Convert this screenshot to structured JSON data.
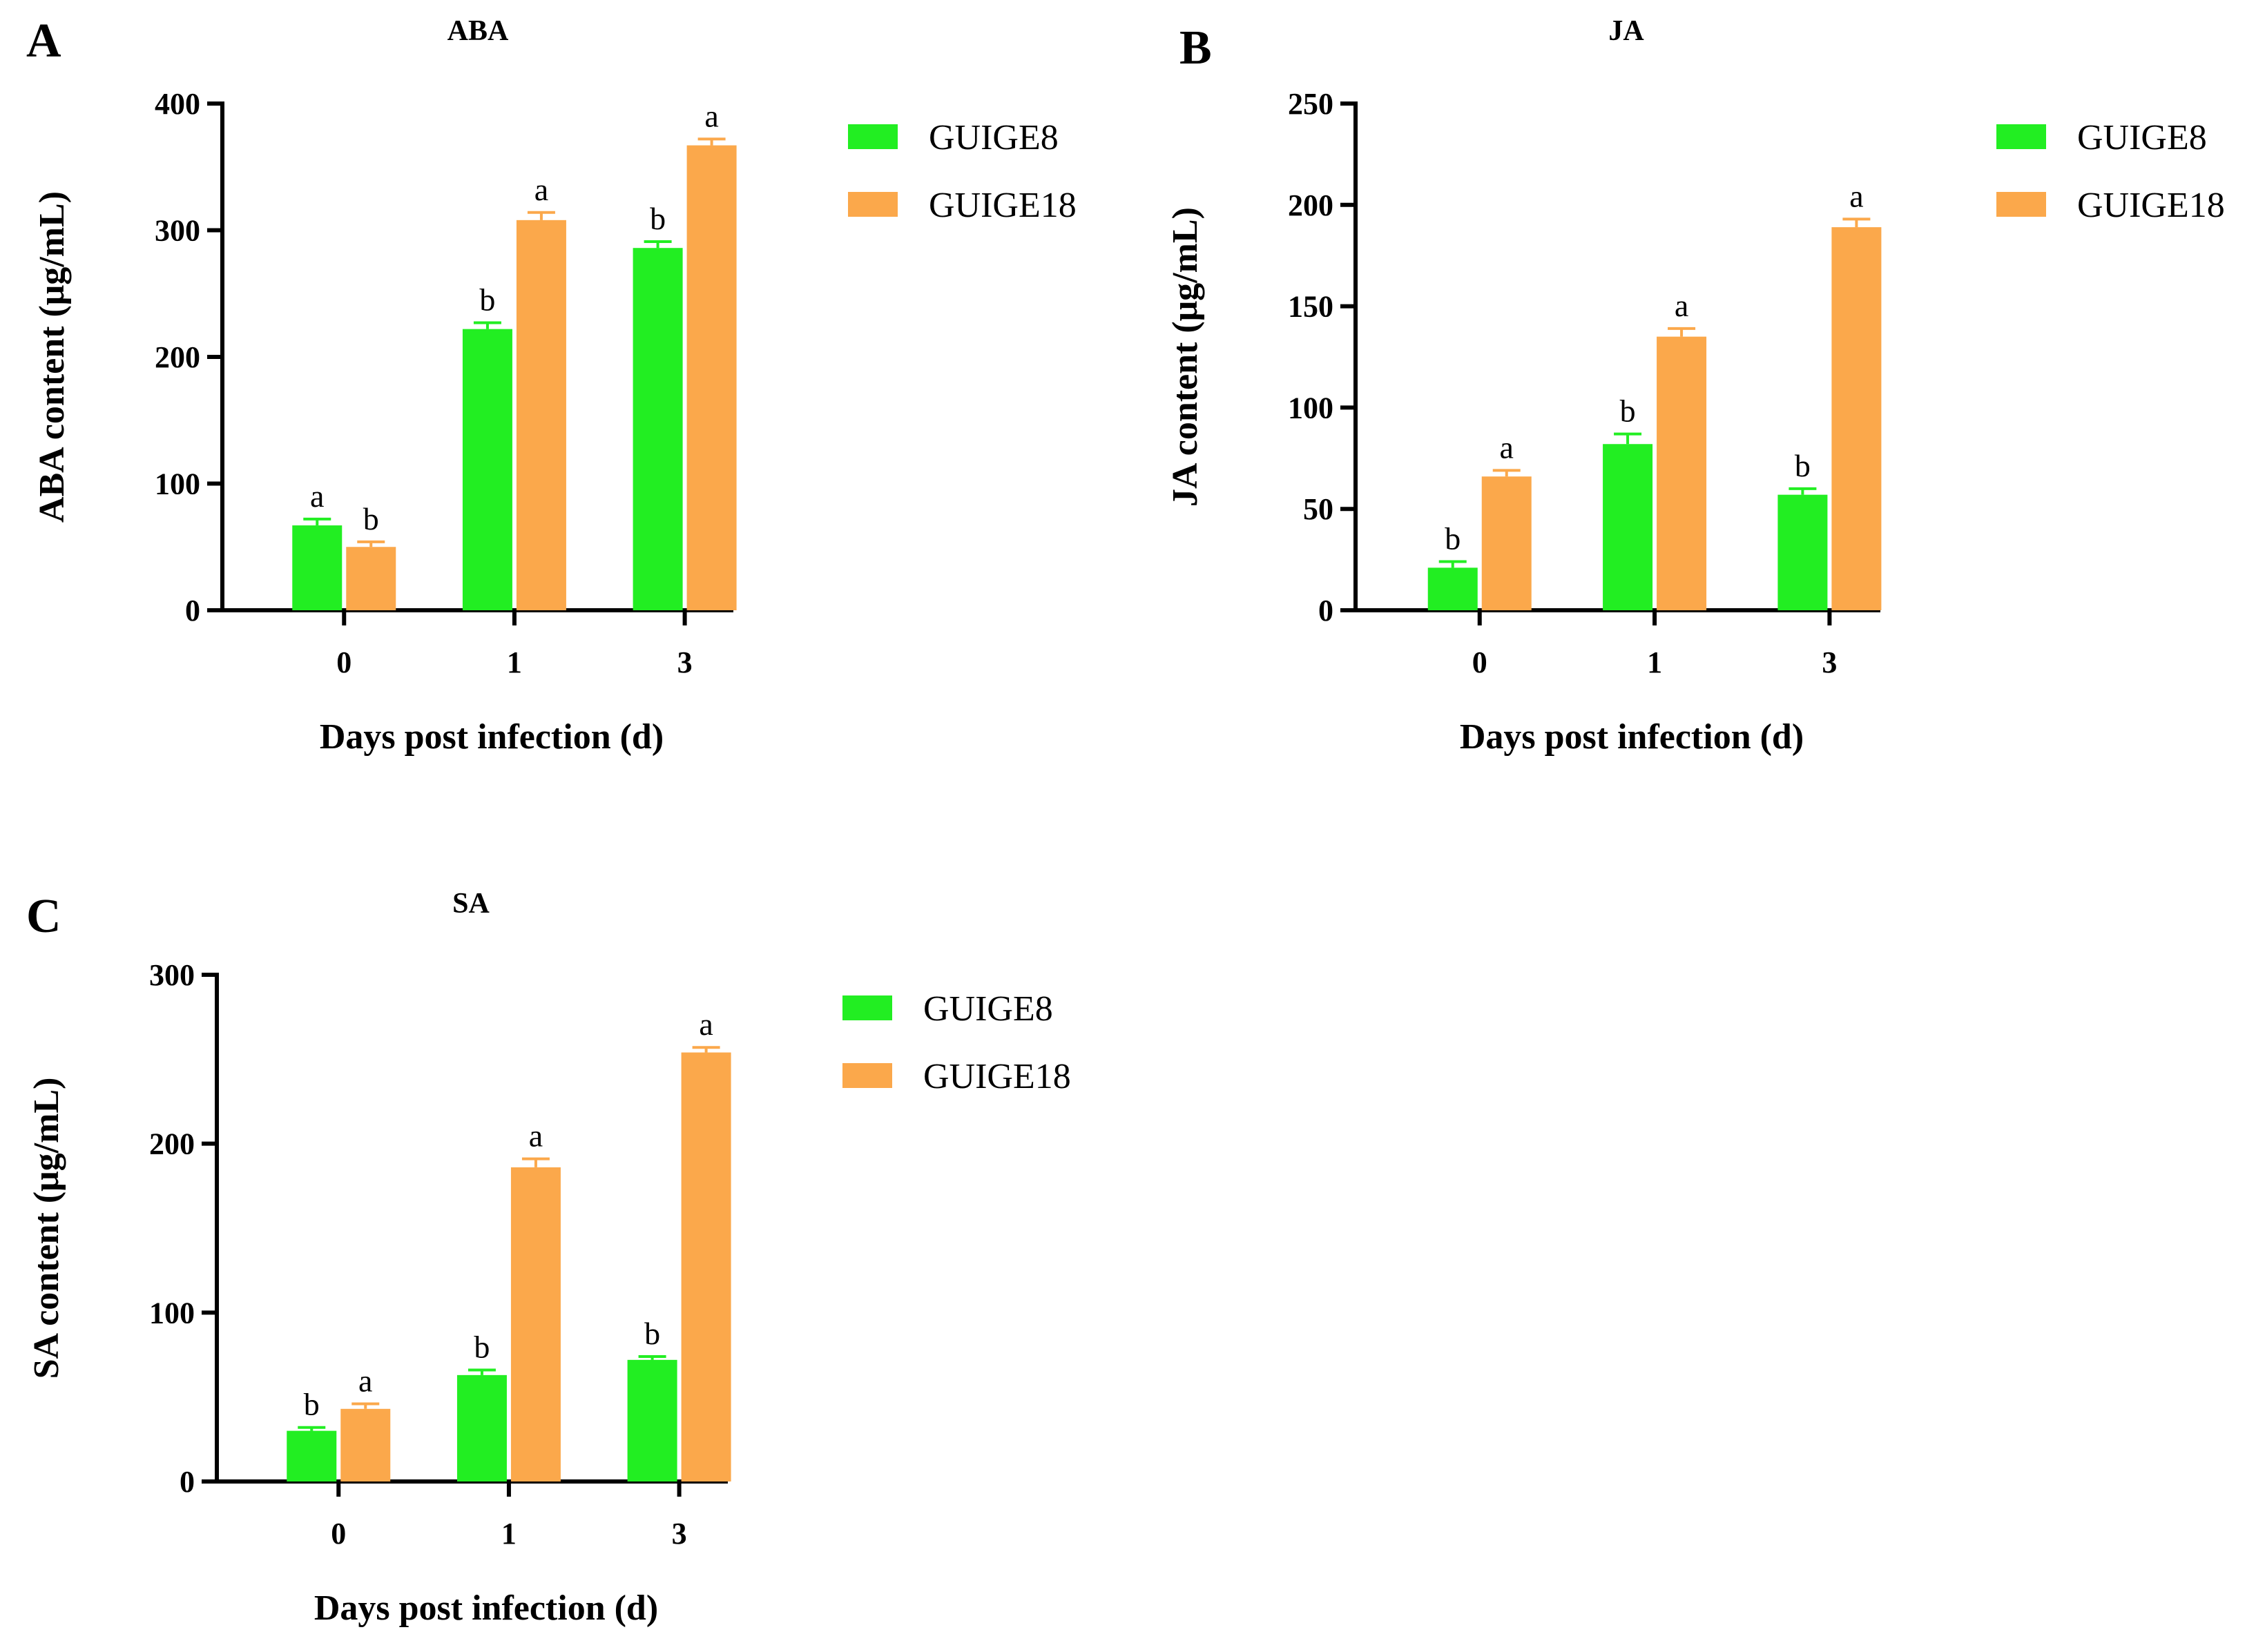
{
  "colors": {
    "GUIGE8": "#22ee22",
    "GUIGE18": "#fba84b"
  },
  "chart_data": [
    {
      "panel": "A",
      "type": "bar",
      "title": "ABA",
      "xlabel": "Days post infection (d)",
      "ylabel": "ABA content (μg/mL)",
      "ylim": [
        0,
        400
      ],
      "yticks": [
        0,
        100,
        200,
        300,
        400
      ],
      "categories": [
        "0",
        "1",
        "3"
      ],
      "legend": "right",
      "series": [
        {
          "name": "GUIGE8",
          "values": [
            67,
            222,
            286
          ],
          "errors": [
            5,
            5,
            5
          ],
          "letters": [
            "a",
            "b",
            "b"
          ]
        },
        {
          "name": "GUIGE18",
          "values": [
            50,
            308,
            367
          ],
          "errors": [
            4,
            6,
            5
          ],
          "letters": [
            "b",
            "a",
            "a"
          ]
        }
      ]
    },
    {
      "panel": "B",
      "type": "bar",
      "title": "JA",
      "xlabel": "Days post infection (d)",
      "ylabel": "JA content (μg/mL)",
      "ylim": [
        0,
        250
      ],
      "yticks": [
        0,
        50,
        100,
        150,
        200,
        250
      ],
      "categories": [
        "0",
        "1",
        "3"
      ],
      "legend": "right",
      "series": [
        {
          "name": "GUIGE8",
          "values": [
            21,
            82,
            57
          ],
          "errors": [
            3,
            5,
            3
          ],
          "letters": [
            "b",
            "b",
            "b"
          ]
        },
        {
          "name": "GUIGE18",
          "values": [
            66,
            135,
            189
          ],
          "errors": [
            3,
            4,
            4
          ],
          "letters": [
            "a",
            "a",
            "a"
          ]
        }
      ]
    },
    {
      "panel": "C",
      "type": "bar",
      "title": "SA",
      "xlabel": "Days post infection (d)",
      "ylabel": "SA content (μg/mL)",
      "ylim": [
        0,
        300
      ],
      "yticks": [
        0,
        100,
        200,
        300
      ],
      "categories": [
        "0",
        "1",
        "3"
      ],
      "legend": "right",
      "series": [
        {
          "name": "GUIGE8",
          "values": [
            30,
            63,
            72
          ],
          "errors": [
            2,
            3,
            2
          ],
          "letters": [
            "b",
            "b",
            "b"
          ]
        },
        {
          "name": "GUIGE18",
          "values": [
            43,
            186,
            254
          ],
          "errors": [
            3,
            5,
            3
          ],
          "letters": [
            "a",
            "a",
            "a"
          ]
        }
      ]
    }
  ]
}
